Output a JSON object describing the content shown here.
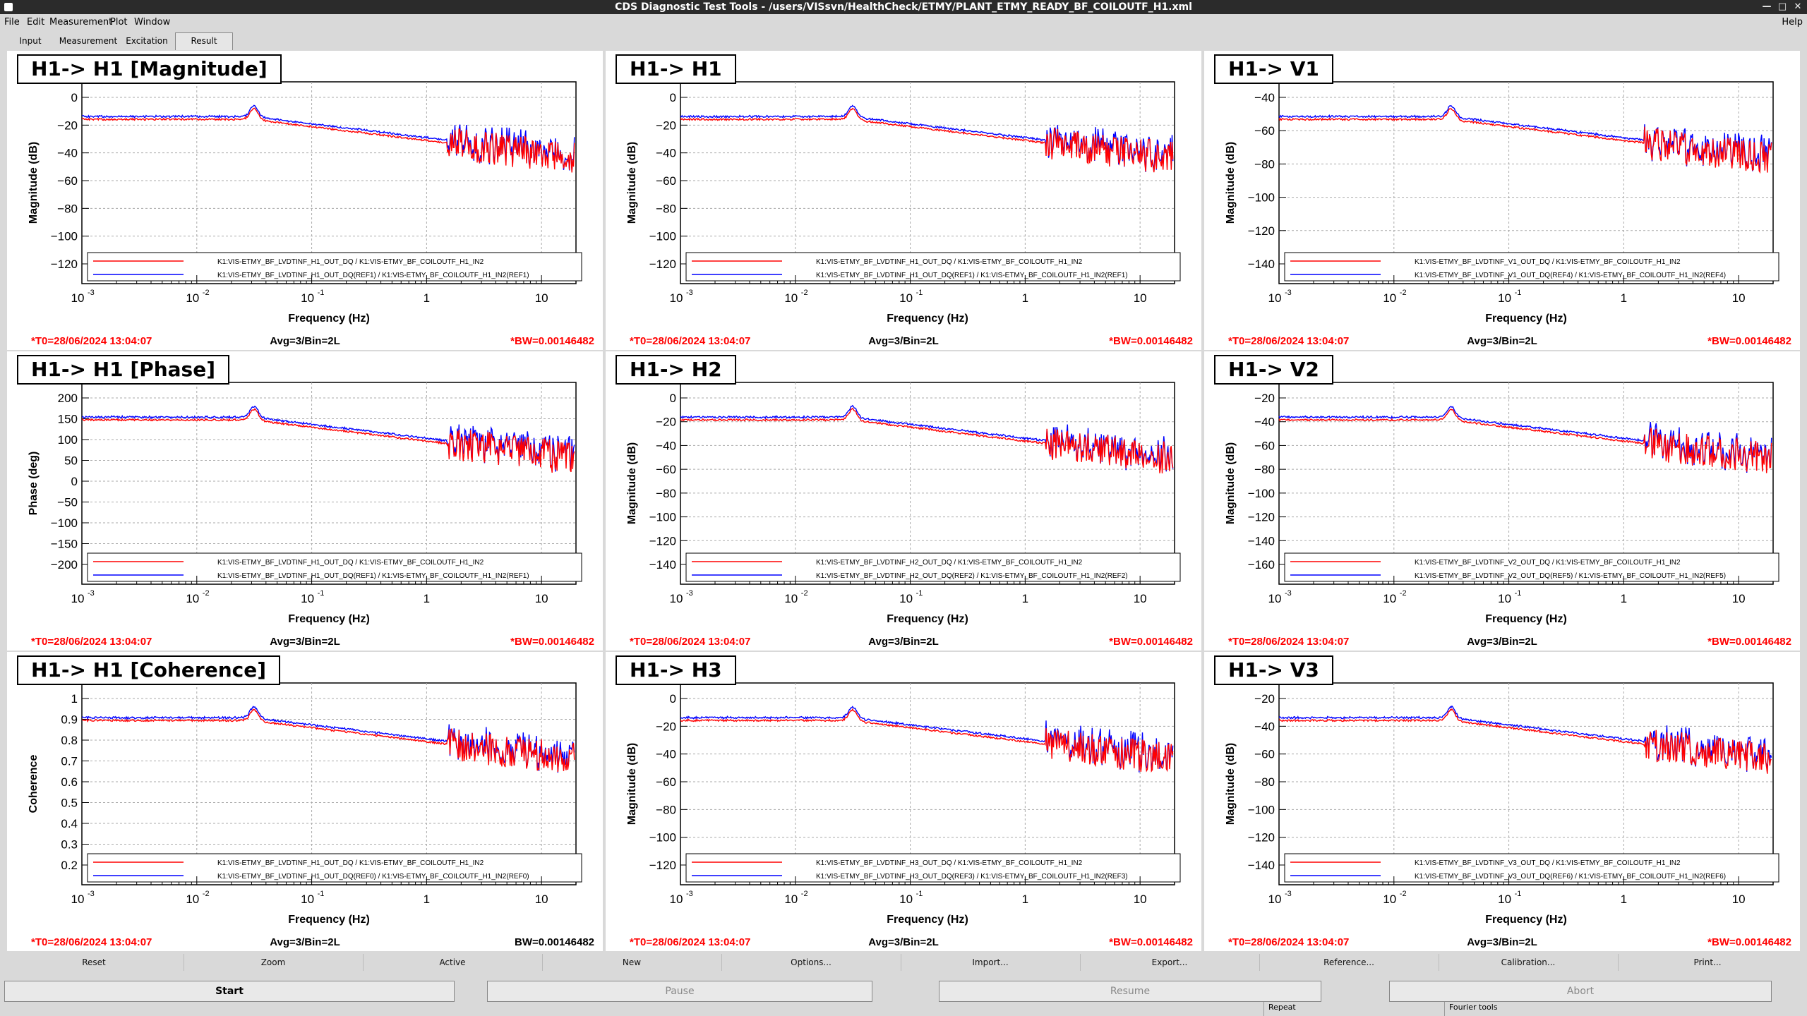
{
  "window": {
    "title": "CDS Diagnostic Test Tools - /users/VISsvn/HealthCheck/ETMY/PLANT_ETMY_READY_BF_COILOUTF_H1.xml"
  },
  "menu": {
    "file": "File",
    "edit": "Edit",
    "measurement": "Measurement",
    "plot": "Plot",
    "window": "Window",
    "help": "Help"
  },
  "tabs": {
    "input": "Input",
    "measurement": "Measurement",
    "excitation": "Excitation",
    "result": "Result"
  },
  "colors": {
    "measured": "#ff0000",
    "reference": "#0000ff"
  },
  "footer": {
    "t0": "*T0=28/06/2024 13:04:07",
    "avg": "Avg=3/Bin=2L",
    "bw_marked": "*BW=0.00146482",
    "bw_plain": "BW=0.00146482"
  },
  "panels": [
    {
      "title": "H1-> H1 [Magnitude]",
      "ylabel": "Magnitude (dB)",
      "xlabel": "Frequency (Hz)",
      "yticks": [
        "0",
        "−20",
        "−40",
        "−60",
        "−80",
        "−100",
        "−120"
      ],
      "legend": [
        "K1:VIS-ETMY_BF_LVDTINF_H1_OUT_DQ / K1:VIS-ETMY_BF_COILOUTF_H1_IN2",
        "K1:VIS-ETMY_BF_LVDTINF_H1_OUT_DQ(REF1) / K1:VIS-ETMY_BF_COILOUTF_H1_IN2(REF1)"
      ]
    },
    {
      "title": "H1-> H1",
      "ylabel": "Magnitude (dB)",
      "xlabel": "Frequency (Hz)",
      "yticks": [
        "0",
        "−20",
        "−40",
        "−60",
        "−80",
        "−100",
        "−120"
      ],
      "legend": [
        "K1:VIS-ETMY_BF_LVDTINF_H1_OUT_DQ / K1:VIS-ETMY_BF_COILOUTF_H1_IN2",
        "K1:VIS-ETMY_BF_LVDTINF_H1_OUT_DQ(REF1) / K1:VIS-ETMY_BF_COILOUTF_H1_IN2(REF1)"
      ]
    },
    {
      "title": "H1-> V1",
      "ylabel": "Magnitude (dB)",
      "xlabel": "Frequency (Hz)",
      "yticks": [
        "−40",
        "−60",
        "−80",
        "−100",
        "−120",
        "−140"
      ],
      "legend": [
        "K1:VIS-ETMY_BF_LVDTINF_V1_OUT_DQ / K1:VIS-ETMY_BF_COILOUTF_H1_IN2",
        "K1:VIS-ETMY_BF_LVDTINF_V1_OUT_DQ(REF4) / K1:VIS-ETMY_BF_COILOUTF_H1_IN2(REF4)"
      ]
    },
    {
      "title": "H1-> H1 [Phase]",
      "ylabel": "Phase (deg)",
      "xlabel": "Frequency (Hz)",
      "yticks": [
        "200",
        "150",
        "100",
        "50",
        "0",
        "−50",
        "−100",
        "−150",
        "−200"
      ],
      "legend": [
        "K1:VIS-ETMY_BF_LVDTINF_H1_OUT_DQ / K1:VIS-ETMY_BF_COILOUTF_H1_IN2",
        "K1:VIS-ETMY_BF_LVDTINF_H1_OUT_DQ(REF1) / K1:VIS-ETMY_BF_COILOUTF_H1_IN2(REF1)"
      ]
    },
    {
      "title": "H1-> H2",
      "ylabel": "Magnitude (dB)",
      "xlabel": "Frequency (Hz)",
      "yticks": [
        "0",
        "−20",
        "−40",
        "−60",
        "−80",
        "−100",
        "−120",
        "−140"
      ],
      "legend": [
        "K1:VIS-ETMY_BF_LVDTINF_H2_OUT_DQ / K1:VIS-ETMY_BF_COILOUTF_H1_IN2",
        "K1:VIS-ETMY_BF_LVDTINF_H2_OUT_DQ(REF2) / K1:VIS-ETMY_BF_COILOUTF_H1_IN2(REF2)"
      ]
    },
    {
      "title": "H1-> V2",
      "ylabel": "Magnitude (dB)",
      "xlabel": "Frequency (Hz)",
      "yticks": [
        "−20",
        "−40",
        "−60",
        "−80",
        "−100",
        "−120",
        "−140",
        "−160"
      ],
      "legend": [
        "K1:VIS-ETMY_BF_LVDTINF_V2_OUT_DQ / K1:VIS-ETMY_BF_COILOUTF_H1_IN2",
        "K1:VIS-ETMY_BF_LVDTINF_V2_OUT_DQ(REF5) / K1:VIS-ETMY_BF_COILOUTF_H1_IN2(REF5)"
      ]
    },
    {
      "title": "H1-> H1 [Coherence]",
      "ylabel": "Coherence",
      "xlabel": "Frequency (Hz)",
      "yticks": [
        "1",
        "0.9",
        "0.8",
        "0.7",
        "0.6",
        "0.5",
        "0.4",
        "0.3",
        "0.2"
      ],
      "legend": [
        "K1:VIS-ETMY_BF_LVDTINF_H1_OUT_DQ / K1:VIS-ETMY_BF_COILOUTF_H1_IN2",
        "K1:VIS-ETMY_BF_LVDTINF_H1_OUT_DQ(REF0) / K1:VIS-ETMY_BF_COILOUTF_H1_IN2(REF0)"
      ]
    },
    {
      "title": "H1-> H3",
      "ylabel": "Magnitude (dB)",
      "xlabel": "Frequency (Hz)",
      "yticks": [
        "0",
        "−20",
        "−40",
        "−60",
        "−80",
        "−100",
        "−120"
      ],
      "legend": [
        "K1:VIS-ETMY_BF_LVDTINF_H3_OUT_DQ / K1:VIS-ETMY_BF_COILOUTF_H1_IN2",
        "K1:VIS-ETMY_BF_LVDTINF_H3_OUT_DQ(REF3) / K1:VIS-ETMY_BF_COILOUTF_H1_IN2(REF3)"
      ]
    },
    {
      "title": "H1-> V3",
      "ylabel": "Magnitude (dB)",
      "xlabel": "Frequency (Hz)",
      "yticks": [
        "−20",
        "−40",
        "−60",
        "−80",
        "−100",
        "−120",
        "−140"
      ],
      "legend": [
        "K1:VIS-ETMY_BF_LVDTINF_V3_OUT_DQ / K1:VIS-ETMY_BF_COILOUTF_H1_IN2",
        "K1:VIS-ETMY_BF_LVDTINF_V3_OUT_DQ(REF6) / K1:VIS-ETMY_BF_COILOUTF_H1_IN2(REF6)"
      ]
    }
  ],
  "xticks": {
    "e3": "10",
    "e3sup": "-3",
    "e2": "10",
    "e2sup": "-2",
    "e1": "10",
    "e1sup": "-1",
    "one": "1",
    "ten": "10"
  },
  "toolbar": [
    "Reset",
    "Zoom",
    "Active",
    "New",
    "Options...",
    "Import...",
    "Export...",
    "Reference...",
    "Calibration...",
    "Print..."
  ],
  "actions": {
    "start": "Start",
    "pause": "Pause",
    "resume": "Resume",
    "abort": "Abort"
  },
  "statusbar": {
    "repeat": "Repeat",
    "fourier": "Fourier tools"
  }
}
